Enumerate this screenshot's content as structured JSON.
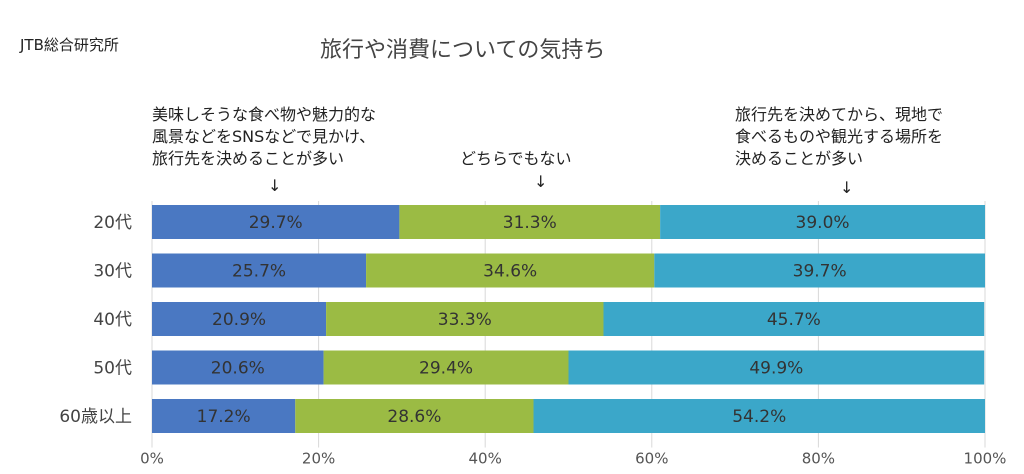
{
  "header": {
    "source": "JTB総合研究所",
    "title": "旅行や消費についての気持ち"
  },
  "annotations": {
    "left": "美味しそうな食べ物や魅力的な\n風景などをSNSなどで見かけ、\n旅行先を決めることが多い",
    "middle": "どちらでもない",
    "right": "旅行先を決めてから、現地で\n食べるものや観光する場所を\n決めることが多い",
    "arrow": "↓"
  },
  "chart_data": {
    "type": "bar",
    "orientation": "horizontal",
    "stacked": true,
    "normalized": true,
    "categories": [
      "20代",
      "30代",
      "40代",
      "50代",
      "60歳以上"
    ],
    "series": [
      {
        "values": [
          29.7,
          25.7,
          20.9,
          20.6,
          17.2
        ],
        "color": "#4a78c2"
      },
      {
        "values": [
          31.3,
          34.6,
          33.3,
          29.4,
          28.6
        ],
        "color": "#9bbb44"
      },
      {
        "values": [
          39.0,
          39.7,
          45.7,
          49.9,
          54.2
        ],
        "color": "#3ba7c9"
      }
    ],
    "value_labels": [
      [
        "29.7%",
        "31.3%",
        "39.0%"
      ],
      [
        "25.7%",
        "34.6%",
        "39.7%"
      ],
      [
        "20.9%",
        "33.3%",
        "45.7%"
      ],
      [
        "20.6%",
        "29.4%",
        "49.9%"
      ],
      [
        "17.2%",
        "28.6%",
        "54.2%"
      ]
    ],
    "xlim": [
      0,
      100
    ],
    "xticks": [
      0,
      20,
      40,
      60,
      80,
      100
    ],
    "xtick_labels": [
      "0%",
      "20%",
      "40%",
      "60%",
      "80%",
      "100%"
    ],
    "grid": "vertical",
    "label_color": "#333333"
  }
}
